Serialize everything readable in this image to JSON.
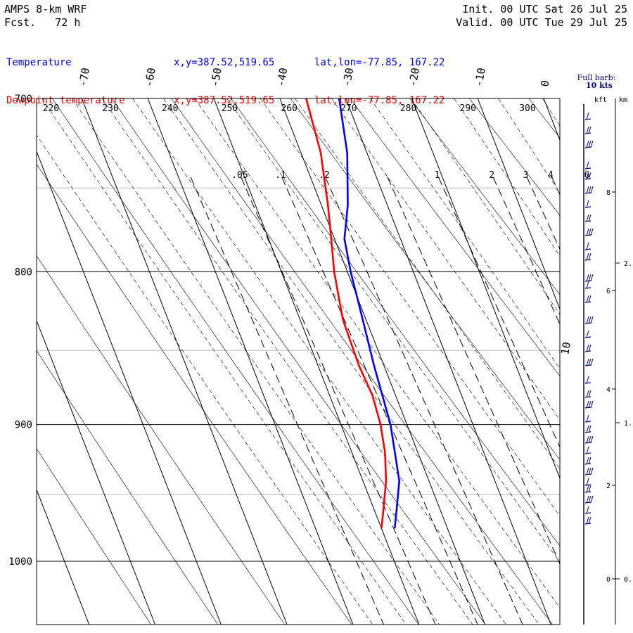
{
  "header": {
    "model": "AMPS 8-km WRF",
    "forecast_label": "Fcst.",
    "forecast_hours": "72 h",
    "init": "Init. 00 UTC Sat 26 Jul 25",
    "valid": "Valid. 00 UTC Tue 29 Jul 25"
  },
  "series_info": [
    {
      "name": "Temperature",
      "xy": "x,y=387.52,519.65",
      "latlon": "lat,lon=-77.85, 167.22",
      "color": "#0000ff"
    },
    {
      "name": "Dewpoint temperature",
      "xy": "x,y=387.52,519.65",
      "latlon": "lat,lon=-77.85, 167.22",
      "color": "#ff0000"
    }
  ],
  "chart_data": {
    "type": "line",
    "diagram": "skew-T log-p",
    "x_axis_ticks_temperature_C": [
      "-70",
      "-60",
      "-50",
      "-40",
      "-30",
      "-20",
      "-10",
      "0",
      "10"
    ],
    "y_axis_ticks_pressure_hPa": [
      "700",
      "800",
      "900",
      "1000"
    ],
    "pressure_range_hPa": [
      700,
      1045
    ],
    "dry_adiabat_labels_K": [
      "220",
      "230",
      "240",
      "250",
      "260",
      "270",
      "280",
      "290",
      "300"
    ],
    "mixing_ratio_labels_gkg": [
      ".05",
      ".1",
      ".2",
      "1",
      "2",
      "3",
      "4",
      "6"
    ],
    "grid_pressures_hPa": [
      750,
      850,
      950
    ],
    "series": [
      {
        "name": "Temperature",
        "color": "#0000ff",
        "pressure_hPa": [
          700,
          730,
          760,
          780,
          800,
          830,
          860,
          880,
          900,
          920,
          940,
          960,
          975
        ],
        "temperature_C": [
          -31.0,
          -33.0,
          -36.0,
          -38.5,
          -39.5,
          -40.5,
          -41.5,
          -42.0,
          -42.5,
          -43.5,
          -44.5,
          -46.5,
          -48.0
        ]
      },
      {
        "name": "Dewpoint temperature",
        "color": "#ff0000",
        "pressure_hPa": [
          700,
          730,
          760,
          780,
          800,
          830,
          860,
          880,
          900,
          920,
          940,
          960,
          975
        ],
        "temperature_C": [
          -36.0,
          -37.0,
          -39.0,
          -40.5,
          -42.0,
          -43.5,
          -43.8,
          -43.5,
          -44.0,
          -45.0,
          -46.5,
          -48.5,
          -50.0
        ]
      }
    ],
    "wind_panel": {
      "title": "Full barb:",
      "subtitle": "10 kts",
      "kft_label": "kft",
      "km_label": "km",
      "kft_ticks": [
        "8",
        "6",
        "4",
        "2",
        "0"
      ],
      "km_ticks": [
        "2.",
        "1.",
        "0."
      ]
    }
  }
}
